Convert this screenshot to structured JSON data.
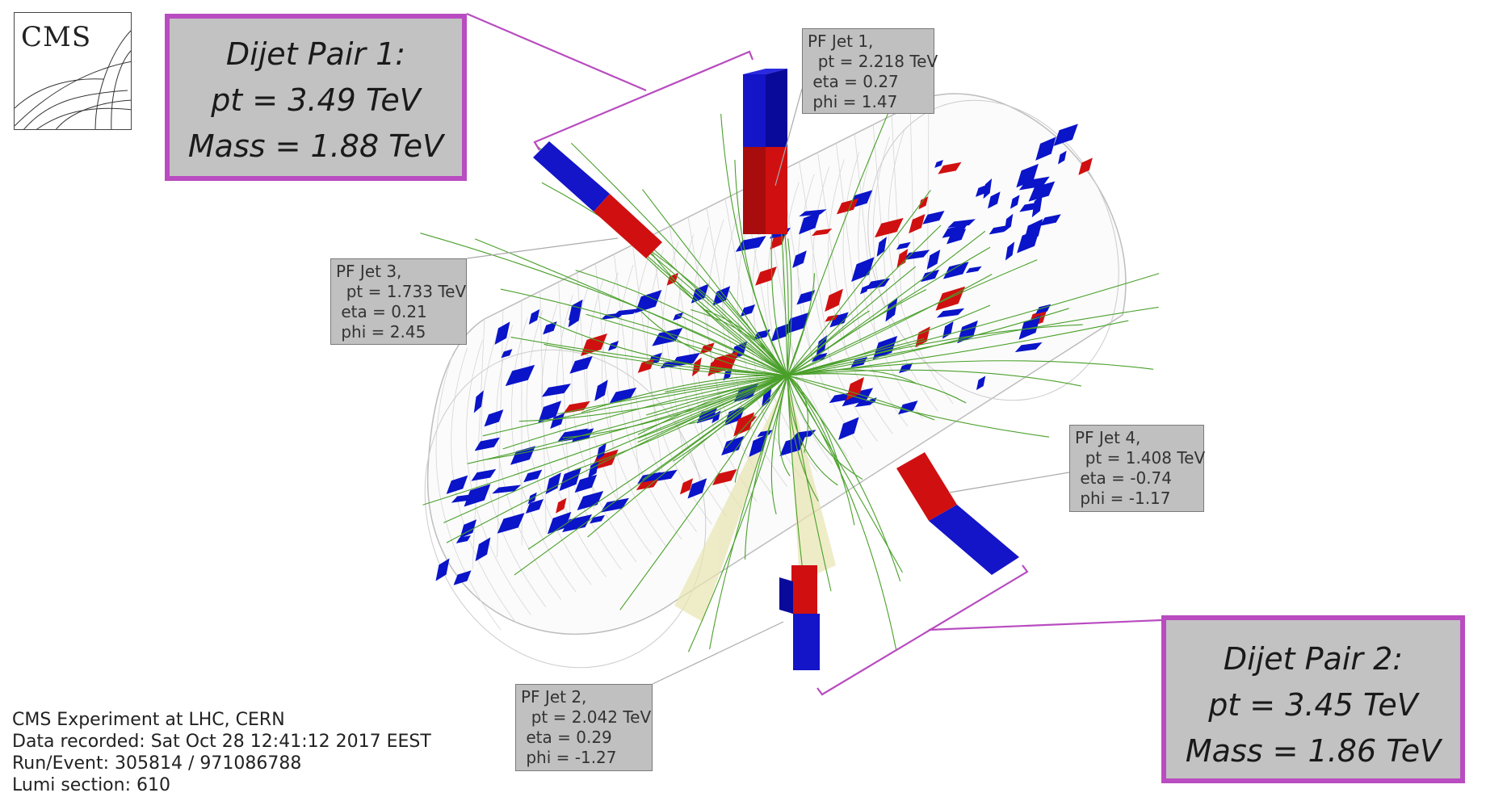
{
  "logo": {
    "text": "CMS"
  },
  "dijet_pairs": [
    {
      "title": "Dijet Pair 1:",
      "pt": "pt = 3.49 TeV",
      "mass": "Mass = 1.88 TeV"
    },
    {
      "title": "Dijet Pair 2:",
      "pt": "pt = 3.45 TeV",
      "mass": "Mass = 1.86 TeV"
    }
  ],
  "jets": [
    {
      "name": "PF Jet 1,",
      "pt": "  pt = 2.218 TeV",
      "eta": " eta = 0.27",
      "phi": " phi = 1.47"
    },
    {
      "name": "PF Jet 2,",
      "pt": "  pt = 2.042 TeV",
      "eta": " eta = 0.29",
      "phi": " phi = -1.27"
    },
    {
      "name": "PF Jet 3,",
      "pt": "  pt = 1.733 TeV",
      "eta": " eta = 0.21",
      "phi": " phi = 2.45"
    },
    {
      "name": "PF Jet 4,",
      "pt": "  pt = 1.408 TeV",
      "eta": " eta = -0.74",
      "phi": " phi = -1.17"
    }
  ],
  "event_info": [
    "CMS Experiment at LHC, CERN",
    "Data recorded: Sat Oct 28 12:41:12 2017 EEST",
    "Run/Event: 305814 / 971086788",
    "Lumi section: 610"
  ],
  "colors": {
    "frame": "#b84cc0",
    "box_fill": "#c2c2c2",
    "ecal": "#0a14c8",
    "hcal": "#d01010",
    "tracks": "#4aa02a",
    "mesh": "#cfcfcf"
  }
}
